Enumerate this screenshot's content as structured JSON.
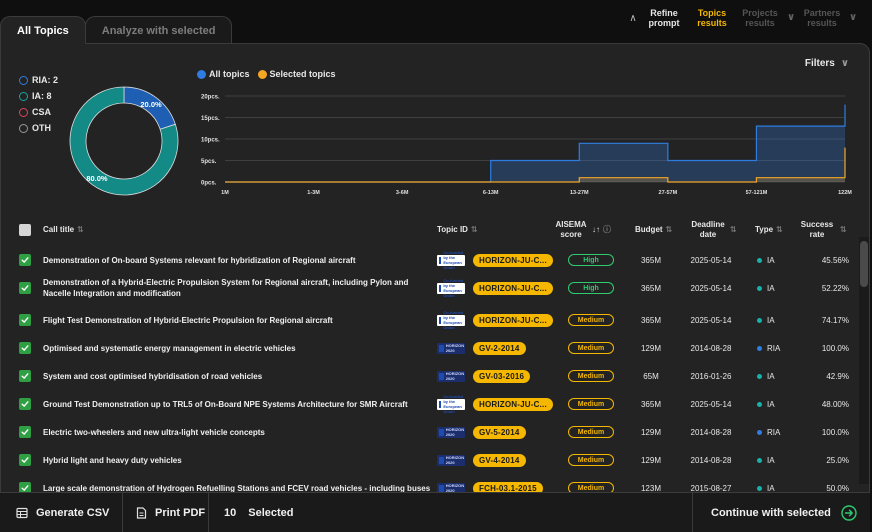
{
  "tabs": [
    {
      "label": "All Topics"
    },
    {
      "label": "Analyze with selected"
    }
  ],
  "steps": [
    {
      "label": "Refine prompt",
      "state": "done"
    },
    {
      "label": "Topics results",
      "state": "active"
    },
    {
      "label": "Projects results",
      "state": "upcoming"
    },
    {
      "label": "Partners results",
      "state": "upcoming"
    }
  ],
  "filters_label": "Filters",
  "donut": {
    "legend": [
      {
        "label": "RIA: 2",
        "color": "#2f7de1"
      },
      {
        "label": "IA: 8",
        "color": "#17a5a0"
      },
      {
        "label": "CSA",
        "color": "#e0435a"
      },
      {
        "label": "OTH",
        "color": "#999999"
      }
    ],
    "slices": [
      {
        "name": "RIA",
        "percent": 20.0,
        "label": "20.0%",
        "color": "#1f5fb3"
      },
      {
        "name": "IA",
        "percent": 80.0,
        "label": "80.0%",
        "color": "#138a86"
      }
    ]
  },
  "chart_data": {
    "type": "area",
    "title": "",
    "legend": [
      {
        "label": "All topics",
        "color": "#2f7de1"
      },
      {
        "label": "Selected topics",
        "color": "#f5a623"
      }
    ],
    "y_ticks": [
      "20pcs.",
      "15pcs.",
      "10pcs.",
      "5pcs.",
      "0pcs."
    ],
    "ylim": [
      0,
      20
    ],
    "categories": [
      "1M",
      "1-3M",
      "3-6M",
      "6-13M",
      "13-27M",
      "27-57M",
      "57-121M",
      "122M"
    ],
    "series": [
      {
        "name": "All topics",
        "values": [
          0,
          0,
          0,
          5,
          9,
          5,
          13,
          18
        ]
      },
      {
        "name": "Selected topics",
        "values": [
          0,
          0,
          0,
          0,
          1,
          0,
          1,
          8
        ]
      }
    ]
  },
  "table": {
    "headers": {
      "title": "Call title",
      "topic_id": "Topic ID",
      "score": "AISEMA score",
      "budget": "Budget",
      "deadline": "Deadline date",
      "type": "Type",
      "rate": "Success rate"
    },
    "rows": [
      {
        "title": "Demonstration of On-board Systems relevant for hybridization of Regional aircraft",
        "logo": "EU",
        "topic": "HORIZON-JU-C...",
        "score": "High",
        "budget": "365M",
        "deadline": "2025-05-14",
        "type": "IA",
        "rate": "45.56%"
      },
      {
        "title": "Demonstration of a Hybrid-Electric Propulsion System for Regional aircraft, including Pylon and Nacelle Integration and modification",
        "logo": "EU",
        "topic": "HORIZON-JU-C...",
        "score": "High",
        "budget": "365M",
        "deadline": "2025-05-14",
        "type": "IA",
        "rate": "52.22%"
      },
      {
        "title": "Flight Test Demonstration of Hybrid-Electric Propulsion for Regional aircraft",
        "logo": "EU",
        "topic": "HORIZON-JU-C...",
        "score": "Medium",
        "budget": "365M",
        "deadline": "2025-05-14",
        "type": "IA",
        "rate": "74.17%"
      },
      {
        "title": "Optimised and systematic energy management in electric vehicles",
        "logo": "H2020",
        "topic": "GV-2-2014",
        "score": "Medium",
        "budget": "129M",
        "deadline": "2014-08-28",
        "type": "RIA",
        "rate": "100.0%"
      },
      {
        "title": "System and cost optimised hybridisation of road vehicles",
        "logo": "H2020",
        "topic": "GV-03-2016",
        "score": "Medium",
        "budget": "65M",
        "deadline": "2016-01-26",
        "type": "IA",
        "rate": "42.9%"
      },
      {
        "title": "Ground Test Demonstration up to TRL5 of On-Board NPE Systems Architecture for SMR Aircraft",
        "logo": "EU",
        "topic": "HORIZON-JU-C...",
        "score": "Medium",
        "budget": "365M",
        "deadline": "2025-05-14",
        "type": "IA",
        "rate": "48.00%"
      },
      {
        "title": "Electric two-wheelers and new ultra-light vehicle concepts",
        "logo": "H2020",
        "topic": "GV-5-2014",
        "score": "Medium",
        "budget": "129M",
        "deadline": "2014-08-28",
        "type": "RIA",
        "rate": "100.0%"
      },
      {
        "title": "Hybrid light and heavy duty vehicles",
        "logo": "H2020",
        "topic": "GV-4-2014",
        "score": "Medium",
        "budget": "129M",
        "deadline": "2014-08-28",
        "type": "IA",
        "rate": "25.0%"
      },
      {
        "title": "Large scale demonstration of Hydrogen Refuelling Stations and FCEV road vehicles - including buses",
        "logo": "H2020",
        "topic": "FCH-03.1-2015",
        "score": "Medium",
        "budget": "123M",
        "deadline": "2015-08-27",
        "type": "IA",
        "rate": "50.0%"
      }
    ]
  },
  "logo_text": {
    "EU": "Co-funded by the European Union",
    "H2020": "HORIZON 2020"
  },
  "type_colors": {
    "IA": "#17b3a8",
    "RIA": "#2f7de1"
  },
  "bottom": {
    "csv": "Generate CSV",
    "pdf": "Print PDF",
    "selected_count": "10",
    "selected_label": "Selected",
    "continue": "Continue with selected"
  }
}
